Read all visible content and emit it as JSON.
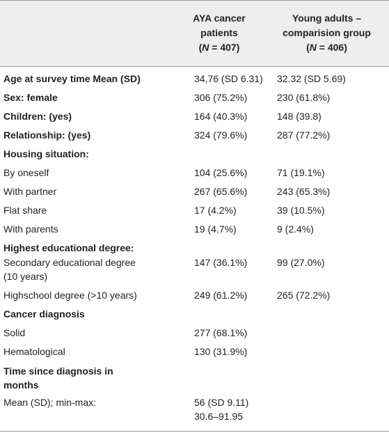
{
  "header": {
    "col1": [
      "AYA cancer",
      "patients"
    ],
    "col1_n": "407",
    "col2": [
      "Young adults –",
      "comparision group"
    ],
    "col2_n": "406",
    "n_symbol": "N",
    "n_prefix": "(",
    "n_eq": " = ",
    "n_suffix": ")"
  },
  "rows": [
    {
      "label": "Age at survey time Mean (SD)",
      "bold": true,
      "v1": "34,76 (SD 6.31)",
      "v2": "32.32 (SD 5.69)"
    },
    {
      "label": "Sex: female",
      "bold": true,
      "v1": "306 (75.2%)",
      "v2": "230 (61.8%)"
    },
    {
      "label": "Children: (yes)",
      "bold": true,
      "v1": "164 (40.3%)",
      "v2": "148 (39.8)"
    },
    {
      "label": "Relationship: (yes)",
      "bold": true,
      "v1": "324 (79.6%)",
      "v2": "287 (77.2%)"
    },
    {
      "label": "Housing situation:",
      "bold": true,
      "v1": "",
      "v2": ""
    },
    {
      "label": "By oneself",
      "bold": false,
      "v1": "104 (25.6%)",
      "v2": "71 (19.1%)"
    },
    {
      "label": "With partner",
      "bold": false,
      "v1": "267 (65.6%)",
      "v2": "243 (65.3%)"
    },
    {
      "label": "Flat share",
      "bold": false,
      "v1": "17 (4.2%)",
      "v2": "39 (10.5%)"
    },
    {
      "label": "With parents",
      "bold": false,
      "v1": "19 (4.7%)",
      "v2": "9 (2.4%)"
    },
    {
      "label": "Highest educational degree:",
      "bold": true,
      "v1": "",
      "v2": ""
    },
    {
      "label_lines": [
        "Secondary educational degree",
        "(10 years)"
      ],
      "bold": false,
      "v1": "147 (36.1%)",
      "v2": "99 (27.0%)"
    },
    {
      "label": "Highschool degree (>10 years)",
      "bold": false,
      "v1": "249 (61.2%)",
      "v2": "265 (72.2%)"
    },
    {
      "label": "Cancer diagnosis",
      "bold": true,
      "v1": "",
      "v2": ""
    },
    {
      "label": "Solid",
      "bold": false,
      "v1": "277 (68.1%)",
      "v2": ""
    },
    {
      "label": "Hematological",
      "bold": false,
      "v1": "130 (31.9%)",
      "v2": ""
    },
    {
      "label_lines": [
        "Time since diagnosis in",
        "months"
      ],
      "bold": true,
      "v1": "",
      "v2": ""
    },
    {
      "label": "Mean (SD); min-max:",
      "bold": false,
      "v1_lines": [
        "56 (SD 9.11)",
        "30.6–91.95"
      ],
      "v2": ""
    }
  ]
}
